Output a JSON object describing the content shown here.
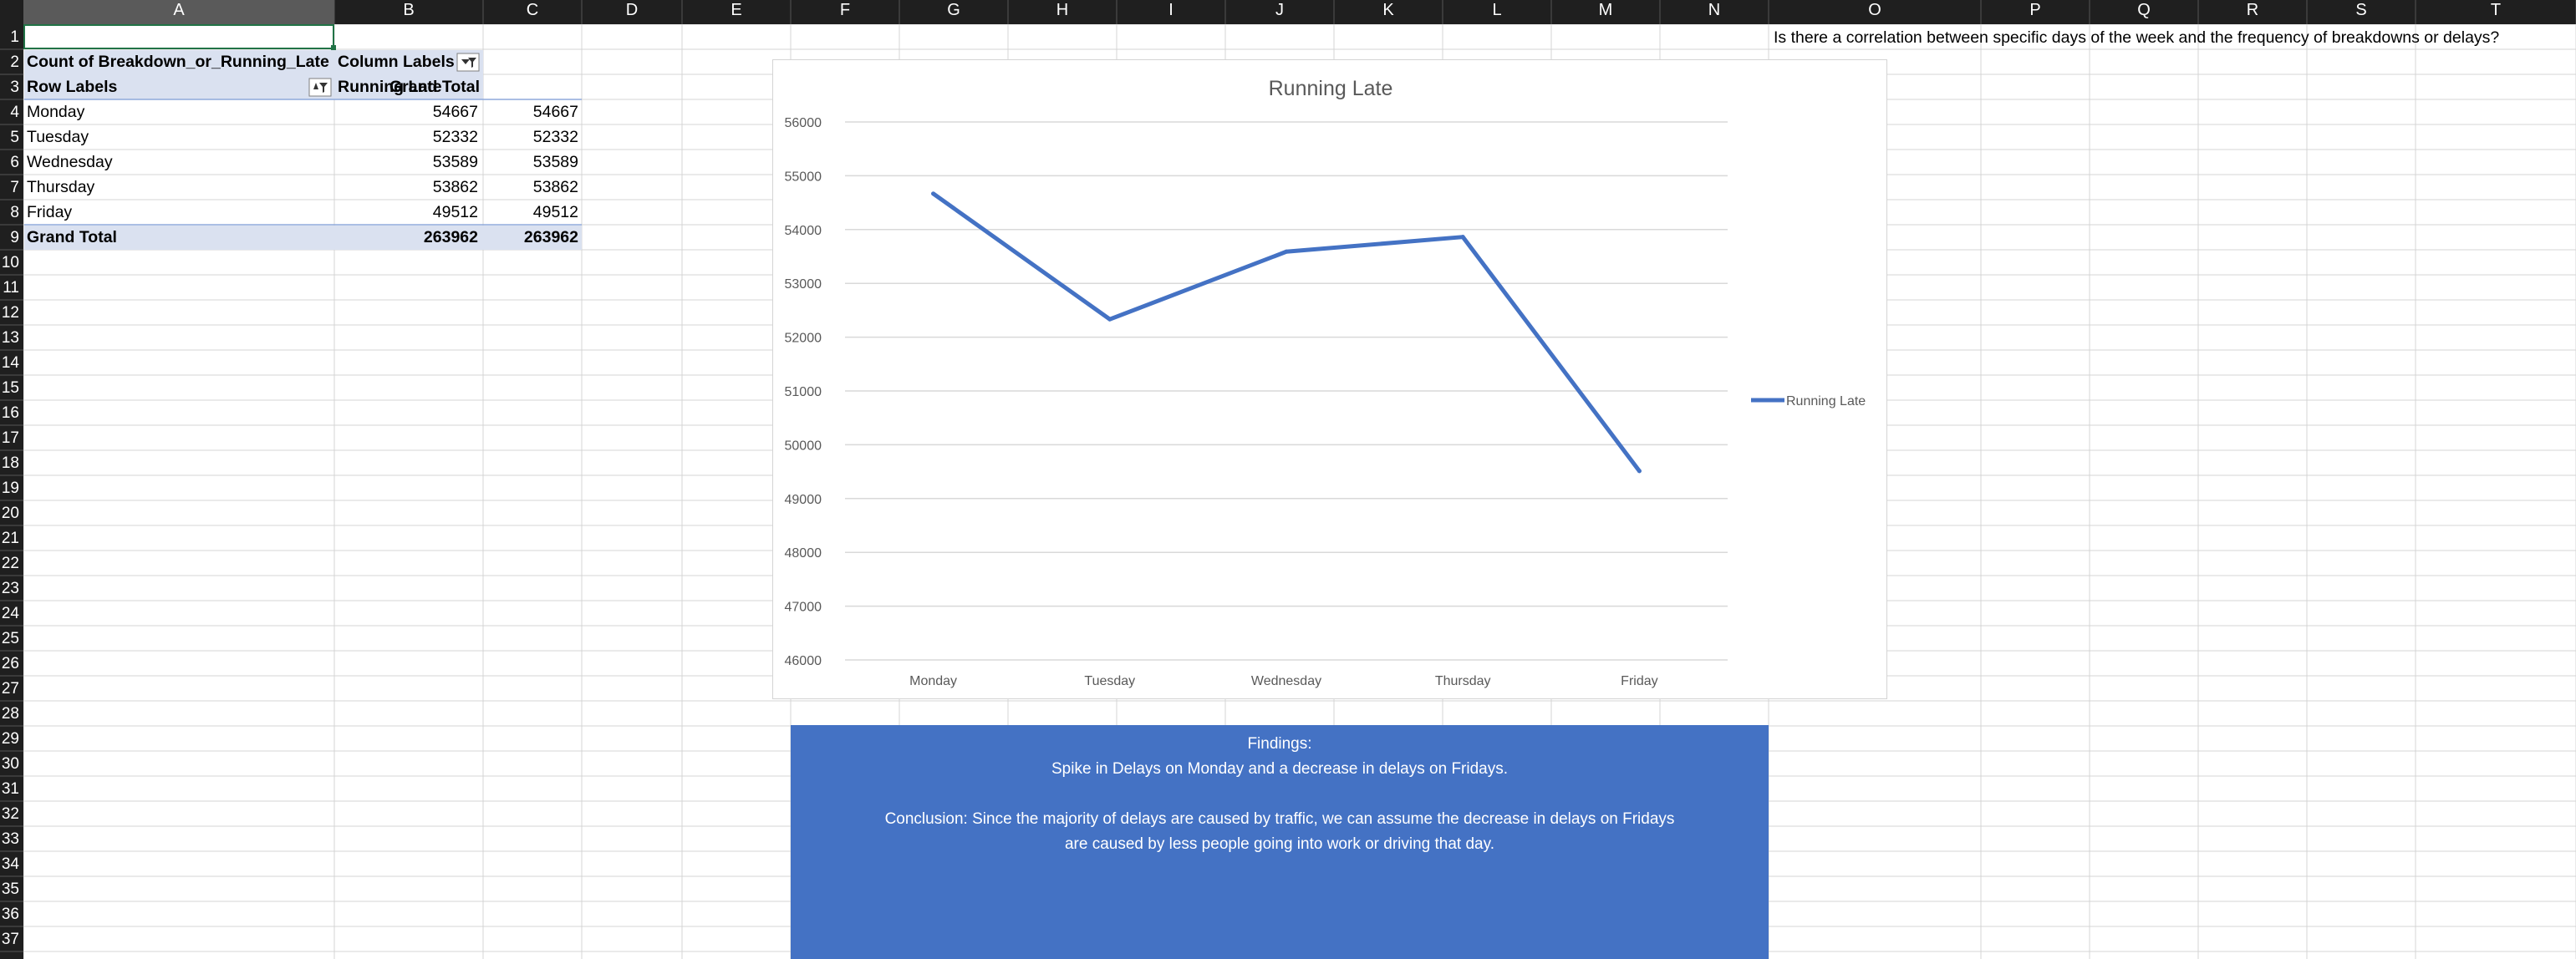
{
  "columns": [
    "A",
    "B",
    "C",
    "D",
    "E",
    "F",
    "G",
    "H",
    "I",
    "J",
    "K",
    "L",
    "M",
    "N",
    "O",
    "P",
    "Q",
    "R",
    "S",
    "T"
  ],
  "rows": [
    "1",
    "2",
    "3",
    "4",
    "5",
    "6",
    "7",
    "8",
    "9",
    "10",
    "11",
    "12",
    "13",
    "14",
    "15",
    "16",
    "17",
    "18",
    "19",
    "20",
    "21",
    "22",
    "23",
    "24",
    "25",
    "26",
    "27",
    "28",
    "29",
    "30",
    "31",
    "32",
    "33",
    "34",
    "35",
    "36",
    "37"
  ],
  "pivot": {
    "title": "Count of Breakdown_or_Running_Late",
    "column_labels": "Column Labels",
    "row_labels": "Row Labels",
    "col_running_late": "Running Late",
    "col_grand_total": "Grand Total",
    "rows": [
      {
        "label": "Monday",
        "running_late": "54667",
        "grand_total": "54667"
      },
      {
        "label": "Tuesday",
        "running_late": "52332",
        "grand_total": "52332"
      },
      {
        "label": "Wednesday",
        "running_late": "53589",
        "grand_total": "53589"
      },
      {
        "label": "Thursday",
        "running_late": "53862",
        "grand_total": "53862"
      },
      {
        "label": "Friday",
        "running_late": "49512",
        "grand_total": "49512"
      }
    ],
    "grand_total_label": "Grand Total",
    "grand_total_running_late": "263962",
    "grand_total_total": "263962"
  },
  "question": "Is there a correlation between specific days of the week and the frequency of breakdowns or delays?",
  "findings": {
    "lines": [
      "Findings:",
      "Spike in Delays on Monday and a decrease in delays on Fridays.",
      "",
      "Conclusion: Since the majority of delays are caused by traffic, we can assume the decrease in delays on Fridays",
      "are caused by less people going into work or driving that day."
    ]
  },
  "colors": {
    "header_bg": "#1f1f1f",
    "header_text": "#ffffff",
    "selected_col": "#5a5a5a",
    "pivot_header": "#dae1f0",
    "series": "#4472c4",
    "findings_bg": "#4472c4",
    "grid": "#d4d4d4",
    "selection": "#217346"
  },
  "chart_data": {
    "type": "line",
    "title": "Running Late",
    "categories": [
      "Monday",
      "Tuesday",
      "Wednesday",
      "Thursday",
      "Friday"
    ],
    "series": [
      {
        "name": "Running Late",
        "values": [
          54667,
          52332,
          53589,
          53862,
          49512
        ]
      }
    ],
    "ylim": [
      46000,
      56000
    ],
    "yticks": [
      "46000",
      "47000",
      "48000",
      "49000",
      "50000",
      "51000",
      "52000",
      "53000",
      "54000",
      "55000",
      "56000"
    ],
    "grid": true,
    "legend": "right"
  }
}
